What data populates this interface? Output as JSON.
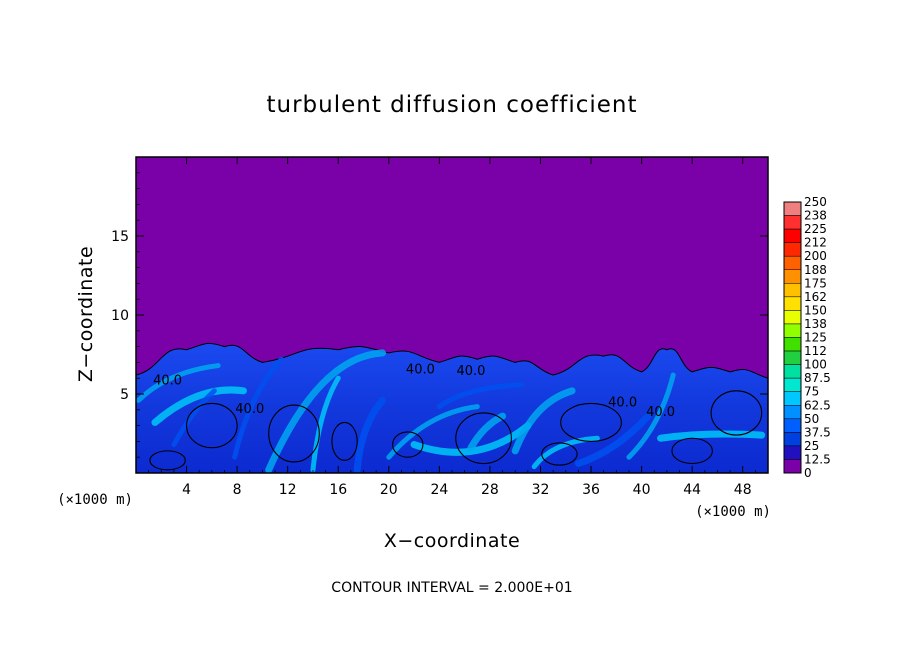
{
  "chart_data": {
    "type": "heatmap",
    "title": "turbulent diffusion coefficient",
    "xlabel": "X−coordinate",
    "ylabel": "Z−coordinate",
    "x_unit_left": "(×1000 m)",
    "x_unit_right": "(×1000 m)",
    "xlim": [
      0,
      50
    ],
    "ylim": [
      0,
      20
    ],
    "x_ticks": [
      4,
      8,
      12,
      16,
      20,
      24,
      28,
      32,
      36,
      40,
      44,
      48
    ],
    "y_ticks": [
      5,
      10,
      15
    ],
    "colorbar": {
      "levels": [
        "250",
        "238",
        "225",
        "212",
        "200",
        "188",
        "175",
        "162",
        "150",
        "138",
        "125",
        "112",
        "100",
        "87.5",
        "75",
        "62.5",
        "50",
        "37.5",
        "25",
        "12.5",
        "0"
      ],
      "colors": [
        "#f08080",
        "#ff3030",
        "#ff0000",
        "#ff2800",
        "#ff6000",
        "#ff9000",
        "#ffc000",
        "#ffe000",
        "#e8ff00",
        "#90ff00",
        "#40e000",
        "#20d040",
        "#00e0a0",
        "#00e8d0",
        "#00c8ff",
        "#0090ff",
        "#0060ff",
        "#0040e0",
        "#2010c0",
        "#7a00a8"
      ]
    },
    "contour_labels": [
      "40.0",
      "40.0",
      "40.0",
      "40.0",
      "40.0",
      "40.0"
    ],
    "background_color": "#7a00a8",
    "field_colors": {
      "low": "#1030d8",
      "mid": "#0050f0",
      "high": "#00a8f0"
    },
    "turbulent_layer_top_z": [
      6.2,
      7.8,
      8.0,
      7.0,
      7.8,
      7.6,
      7.0,
      7.2,
      7.0,
      6.2,
      7.4,
      6.4,
      7.8,
      6.4,
      6.4,
      6.0
    ],
    "turbulent_layer_top_x": [
      0,
      4,
      7,
      10,
      16,
      20,
      24,
      27,
      30,
      33,
      37,
      40,
      42,
      44,
      47,
      50
    ]
  },
  "footer": {
    "contour_interval": "CONTOUR INTERVAL = 2.000E+01"
  }
}
